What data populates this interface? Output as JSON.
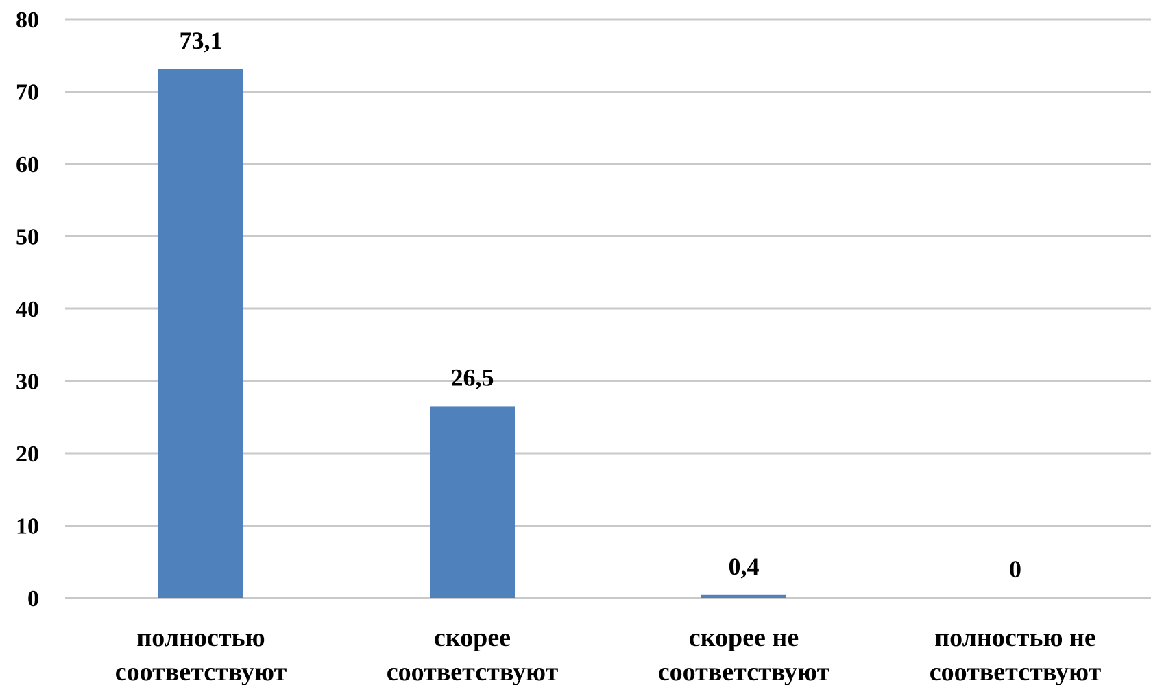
{
  "chart_data": {
    "type": "bar",
    "title": "",
    "xlabel": "",
    "ylabel": "",
    "categories": [
      [
        "полностью",
        "соответствуют"
      ],
      [
        "скорее",
        "соответствуют"
      ],
      [
        "скорее не",
        "соответствуют"
      ],
      [
        "полностью не",
        "соответствуют"
      ]
    ],
    "values": [
      73.1,
      26.5,
      0.4,
      0
    ],
    "data_labels": [
      "73,1",
      "26,5",
      "0,4",
      "0"
    ],
    "ylim": [
      0,
      80
    ],
    "yticks": [
      "0",
      "10",
      "20",
      "30",
      "40",
      "50",
      "60",
      "70",
      "80"
    ],
    "grid": true,
    "legend": "none",
    "colors": {
      "bar": "#4f81bd",
      "grid": "#c9c9c9",
      "text": "#000000"
    }
  }
}
